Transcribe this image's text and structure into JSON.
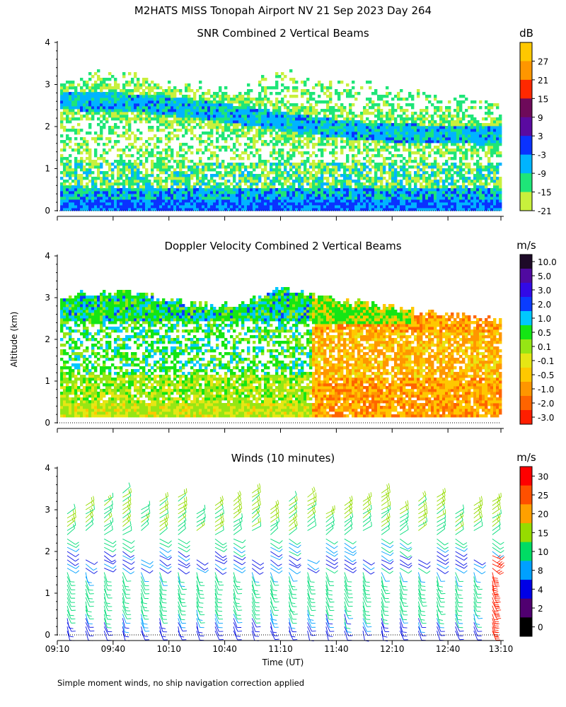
{
  "figure": {
    "title": "M2HATS MISS Tonopah Airport NV  21 Sep 2023 Day 264",
    "ylabel": "Altitude (km)",
    "xlabel": "Time (UT)",
    "footer": "Simple moment winds, no ship navigation correction applied"
  },
  "chart_data": [
    {
      "type": "heatmap",
      "title": "SNR Combined 2 Vertical Beams",
      "units": "dB",
      "xlabel": "Time (UT)",
      "ylabel": "Altitude (km)",
      "x_ticks": [
        "09:10",
        "09:40",
        "10:10",
        "10:40",
        "11:10",
        "11:40",
        "12:10",
        "12:40",
        "13:10"
      ],
      "y_ticks": [
        0,
        1,
        2,
        3,
        4
      ],
      "ylim": [
        0,
        4
      ],
      "colorbar_labels": [
        "27",
        "21",
        "15",
        "9",
        "3",
        "-3",
        "-9",
        "-15",
        "-21"
      ],
      "colorbar_colors": [
        "#ffc800",
        "#ff9600",
        "#ff2800",
        "#6e0a5a",
        "#5a0aa0",
        "#0a32ff",
        "#00b4ff",
        "#1ee678",
        "#c8f03c"
      ],
      "signal_top_km": [
        3.1,
        3.3,
        3.2,
        3.0,
        2.9,
        3.4,
        3.1,
        3.0,
        2.8,
        2.7,
        2.6
      ],
      "features": [
        {
          "name": "strong-surface-layer",
          "km": [
            0.05,
            0.55
          ],
          "value_db": -3
        },
        {
          "name": "upper-layer",
          "km": [
            2.4,
            3.0
          ],
          "value_db": -9
        }
      ]
    },
    {
      "type": "heatmap",
      "title": "Doppler Velocity Combined 2 Vertical Beams",
      "units": "m/s",
      "xlabel": "Time (UT)",
      "ylabel": "Altitude (km)",
      "x_ticks": [
        "09:10",
        "09:40",
        "10:10",
        "10:40",
        "11:10",
        "11:40",
        "12:10",
        "12:40",
        "13:10"
      ],
      "y_ticks": [
        0,
        1,
        2,
        3,
        4
      ],
      "ylim": [
        0,
        4
      ],
      "colorbar_labels": [
        "10.0",
        "5.0",
        "3.0",
        "2.0",
        "1.0",
        "0.5",
        "0.1",
        "-0.1",
        "-0.5",
        "-1.0",
        "-2.0",
        "-3.0"
      ],
      "colorbar_colors": [
        "#1e0a28",
        "#500aa0",
        "#320ae6",
        "#0a3cff",
        "#00c8ff",
        "#14e614",
        "#96e614",
        "#e6e614",
        "#ffc800",
        "#ff9600",
        "#ff6400",
        "#ff1e00"
      ],
      "features": [
        {
          "name": "upward-motion-early",
          "time": [
            "09:10",
            "11:10"
          ],
          "value_ms": 0.5
        },
        {
          "name": "downward-motion-late",
          "time": [
            "11:30",
            "13:10"
          ],
          "value_ms": -1.0
        }
      ]
    },
    {
      "type": "wind-barbs",
      "title": "Winds (10 minutes)",
      "units": "m/s",
      "xlabel": "Time (UT)",
      "ylabel": "Altitude (km)",
      "x_ticks": [
        "09:10",
        "09:40",
        "10:10",
        "10:40",
        "11:10",
        "11:40",
        "12:10",
        "12:40",
        "13:10"
      ],
      "y_ticks": [
        0,
        1,
        2,
        3,
        4
      ],
      "ylim": [
        0,
        4
      ],
      "colorbar_labels": [
        "30",
        "25",
        "20",
        "15",
        "10",
        "8",
        "4",
        "2",
        "0"
      ],
      "colorbar_colors": [
        "#ff0000",
        "#ff5000",
        "#ffa000",
        "#96dc00",
        "#00dc64",
        "#00a0ff",
        "#0000e6",
        "#500070",
        "#000000"
      ],
      "profile_times": [
        "09:10",
        "09:20",
        "09:30",
        "09:40",
        "09:50",
        "10:00",
        "10:10",
        "10:20",
        "10:30",
        "10:40",
        "10:50",
        "11:00",
        "11:10",
        "11:20",
        "11:30",
        "11:40",
        "11:50",
        "12:00",
        "12:10",
        "12:20",
        "12:30",
        "12:40",
        "12:50",
        "13:00"
      ],
      "speed_profile_ms": [
        {
          "km": 0.2,
          "speed": 6
        },
        {
          "km": 0.7,
          "speed": 12
        },
        {
          "km": 1.2,
          "speed": 13
        },
        {
          "km": 1.8,
          "speed": 7
        },
        {
          "km": 2.5,
          "speed": 14
        },
        {
          "km": 3.1,
          "speed": 16
        }
      ]
    }
  ]
}
